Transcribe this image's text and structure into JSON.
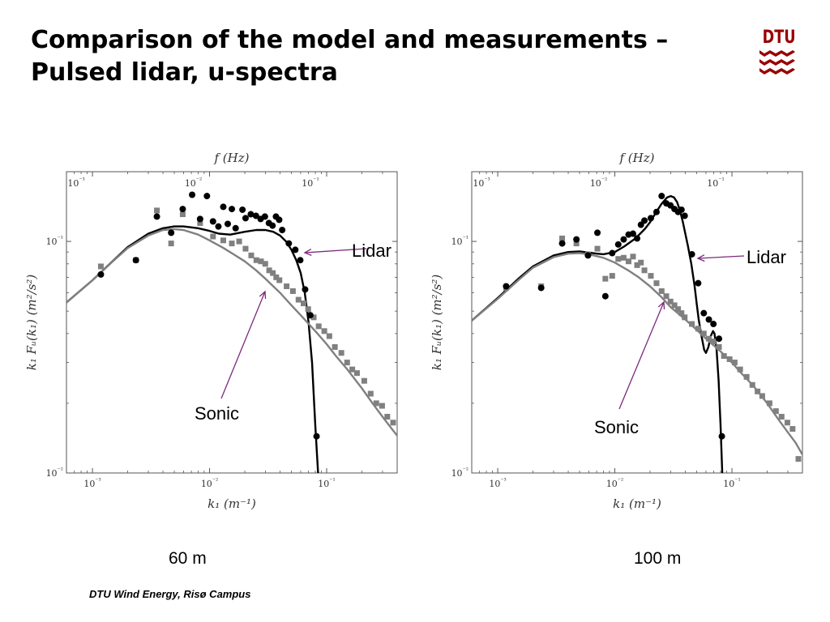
{
  "title": {
    "line1": "Comparison of the model and measurements –",
    "line2": "Pulsed lidar, u-spectra"
  },
  "logo": {
    "text": "DTU",
    "color": "#990000"
  },
  "colors": {
    "lidar": "#000000",
    "sonic": "#808080",
    "arrow": "#7b2a7b"
  },
  "footer": "DTU Wind Energy, Risø Campus",
  "chart_data": [
    {
      "type": "scatter",
      "caption": "60 m",
      "top_axis_label": "f (Hz)",
      "xlabel": "k₁ (m⁻¹)",
      "ylabel": "k₁ Fᵤ(k₁) (m²/s²)",
      "x_scale": "log",
      "y_scale": "log",
      "xlim": [
        0.0006,
        0.4
      ],
      "ylim": [
        0.01,
        0.2
      ],
      "x_ticks": [
        "10⁻³",
        "10⁻²",
        "10⁻¹"
      ],
      "y_ticks": [
        "10⁻²",
        "10⁻¹"
      ],
      "top_ticks": [
        "10⁻³",
        "10⁻²",
        "10⁻¹"
      ],
      "annotations": {
        "lidar": "Lidar",
        "sonic": "Sonic"
      },
      "series": [
        {
          "name": "Lidar",
          "kind": "points",
          "marker": "circle",
          "x": [
            0.00118,
            0.00235,
            0.00355,
            0.0047,
            0.0059,
            0.0071,
            0.0083,
            0.0095,
            0.0107,
            0.0119,
            0.0131,
            0.0143,
            0.0155,
            0.0167,
            0.0191,
            0.0203,
            0.0225,
            0.0249,
            0.0273,
            0.0297,
            0.0321,
            0.0345,
            0.0369,
            0.0393,
            0.0417,
            0.0475,
            0.054,
            0.0595,
            0.0655,
            0.0725,
            0.082
          ],
          "y": [
            0.072,
            0.083,
            0.128,
            0.109,
            0.138,
            0.159,
            0.125,
            0.157,
            0.122,
            0.116,
            0.141,
            0.119,
            0.138,
            0.114,
            0.137,
            0.126,
            0.131,
            0.129,
            0.125,
            0.128,
            0.12,
            0.117,
            0.128,
            0.124,
            0.112,
            0.098,
            0.092,
            0.083,
            0.062,
            0.048,
            0.0144
          ]
        },
        {
          "name": "Sonic",
          "kind": "points",
          "marker": "square",
          "x": [
            0.00118,
            0.00235,
            0.00355,
            0.0047,
            0.0059,
            0.0083,
            0.0107,
            0.0131,
            0.0155,
            0.0179,
            0.0203,
            0.0227,
            0.0251,
            0.0275,
            0.0299,
            0.0323,
            0.0347,
            0.0371,
            0.0395,
            0.0455,
            0.0515,
            0.0575,
            0.0635,
            0.0695,
            0.0775,
            0.0855,
            0.0955,
            0.1055,
            0.1175,
            0.1335,
            0.1495,
            0.1655,
            0.1815,
            0.2095,
            0.2375,
            0.2655,
            0.2975,
            0.3295,
            0.3695
          ],
          "y": [
            0.078,
            0.083,
            0.136,
            0.098,
            0.131,
            0.12,
            0.105,
            0.101,
            0.098,
            0.1,
            0.093,
            0.087,
            0.083,
            0.082,
            0.08,
            0.075,
            0.073,
            0.07,
            0.068,
            0.064,
            0.061,
            0.056,
            0.054,
            0.051,
            0.047,
            0.043,
            0.041,
            0.039,
            0.035,
            0.033,
            0.03,
            0.028,
            0.027,
            0.025,
            0.022,
            0.02,
            0.0195,
            0.0175,
            0.0165
          ]
        },
        {
          "name": "Lidar model",
          "kind": "line",
          "x": [
            0.0006,
            0.001,
            0.0015,
            0.002,
            0.003,
            0.004,
            0.005,
            0.006,
            0.008,
            0.01,
            0.012,
            0.015,
            0.02,
            0.025,
            0.03,
            0.035,
            0.04,
            0.045,
            0.05,
            0.055,
            0.06,
            0.065,
            0.07,
            0.075,
            0.08,
            0.085
          ],
          "y": [
            0.0545,
            0.068,
            0.0825,
            0.0945,
            0.108,
            0.114,
            0.116,
            0.116,
            0.114,
            0.111,
            0.108,
            0.107,
            0.11,
            0.112,
            0.112,
            0.11,
            0.106,
            0.1,
            0.092,
            0.083,
            0.073,
            0.06,
            0.045,
            0.03,
            0.016,
            0.0095
          ]
        },
        {
          "name": "Sonic model",
          "kind": "line",
          "x": [
            0.0006,
            0.001,
            0.0015,
            0.002,
            0.003,
            0.004,
            0.005,
            0.006,
            0.008,
            0.01,
            0.013,
            0.016,
            0.02,
            0.025,
            0.03,
            0.04,
            0.05,
            0.06,
            0.08,
            0.1,
            0.12,
            0.15,
            0.2,
            0.25,
            0.3,
            0.35,
            0.4
          ],
          "y": [
            0.0545,
            0.068,
            0.0822,
            0.0935,
            0.106,
            0.112,
            0.113,
            0.112,
            0.107,
            0.101,
            0.094,
            0.088,
            0.082,
            0.075,
            0.069,
            0.06,
            0.053,
            0.048,
            0.041,
            0.036,
            0.032,
            0.028,
            0.0232,
            0.0198,
            0.0175,
            0.0158,
            0.0145
          ]
        }
      ]
    },
    {
      "type": "scatter",
      "caption": "100 m",
      "top_axis_label": "f (Hz)",
      "xlabel": "k₁ (m⁻¹)",
      "ylabel": "k₁ Fᵤ(k₁) (m²/s²)",
      "x_scale": "log",
      "y_scale": "log",
      "xlim": [
        0.0006,
        0.4
      ],
      "ylim": [
        0.01,
        0.2
      ],
      "x_ticks": [
        "10⁻³",
        "10⁻²",
        "10⁻¹"
      ],
      "y_ticks": [
        "10⁻²",
        "10⁻¹"
      ],
      "top_ticks": [
        "10⁻³",
        "10⁻²",
        "10⁻¹"
      ],
      "annotations": {
        "lidar": "Lidar",
        "sonic": "Sonic"
      },
      "series": [
        {
          "name": "Lidar",
          "kind": "points",
          "marker": "circle",
          "x": [
            0.00118,
            0.00235,
            0.00355,
            0.0047,
            0.0059,
            0.0071,
            0.0083,
            0.0095,
            0.0107,
            0.0119,
            0.0131,
            0.0143,
            0.0155,
            0.0167,
            0.0179,
            0.0203,
            0.0227,
            0.0251,
            0.0275,
            0.0299,
            0.0323,
            0.0347,
            0.0371,
            0.0395,
            0.0455,
            0.0515,
            0.0575,
            0.0635,
            0.0695,
            0.0775,
            0.082
          ],
          "y": [
            0.064,
            0.063,
            0.098,
            0.102,
            0.087,
            0.109,
            0.058,
            0.089,
            0.097,
            0.102,
            0.107,
            0.108,
            0.103,
            0.118,
            0.123,
            0.126,
            0.134,
            0.157,
            0.146,
            0.143,
            0.138,
            0.134,
            0.137,
            0.129,
            0.088,
            0.066,
            0.049,
            0.046,
            0.044,
            0.038,
            0.0144
          ]
        },
        {
          "name": "Sonic",
          "kind": "points",
          "marker": "square",
          "x": [
            0.00118,
            0.00235,
            0.00355,
            0.0047,
            0.0059,
            0.0071,
            0.0083,
            0.0095,
            0.0107,
            0.0119,
            0.0131,
            0.0143,
            0.0155,
            0.0167,
            0.0179,
            0.0203,
            0.0227,
            0.0251,
            0.0275,
            0.0299,
            0.0323,
            0.0347,
            0.0371,
            0.0395,
            0.0455,
            0.0515,
            0.0575,
            0.0635,
            0.0695,
            0.0775,
            0.0855,
            0.0955,
            0.1055,
            0.1175,
            0.1335,
            0.1495,
            0.1655,
            0.1815,
            0.2095,
            0.2375,
            0.2655,
            0.2975,
            0.3295,
            0.3695
          ],
          "y": [
            0.063,
            0.064,
            0.103,
            0.098,
            0.088,
            0.093,
            0.069,
            0.071,
            0.084,
            0.085,
            0.082,
            0.086,
            0.079,
            0.081,
            0.075,
            0.071,
            0.066,
            0.061,
            0.058,
            0.055,
            0.053,
            0.051,
            0.049,
            0.047,
            0.044,
            0.042,
            0.04,
            0.038,
            0.037,
            0.035,
            0.032,
            0.031,
            0.03,
            0.028,
            0.026,
            0.024,
            0.0225,
            0.0215,
            0.02,
            0.0185,
            0.0175,
            0.0165,
            0.0155,
            0.0115
          ]
        },
        {
          "name": "Lidar model",
          "kind": "line",
          "x": [
            0.0006,
            0.001,
            0.0015,
            0.002,
            0.003,
            0.004,
            0.005,
            0.006,
            0.007,
            0.008,
            0.01,
            0.012,
            0.015,
            0.018,
            0.02,
            0.022,
            0.025,
            0.028,
            0.03,
            0.032,
            0.034,
            0.036,
            0.038,
            0.04,
            0.042,
            0.045,
            0.048,
            0.05,
            0.052,
            0.055,
            0.058,
            0.06,
            0.063,
            0.066,
            0.069,
            0.071,
            0.074,
            0.077,
            0.08,
            0.083
          ],
          "y": [
            0.0455,
            0.057,
            0.069,
            0.078,
            0.087,
            0.09,
            0.0905,
            0.0895,
            0.0885,
            0.088,
            0.09,
            0.095,
            0.103,
            0.113,
            0.121,
            0.131,
            0.145,
            0.155,
            0.157,
            0.155,
            0.148,
            0.136,
            0.122,
            0.108,
            0.096,
            0.08,
            0.064,
            0.054,
            0.046,
            0.039,
            0.034,
            0.033,
            0.035,
            0.039,
            0.041,
            0.04,
            0.034,
            0.025,
            0.016,
            0.0095
          ]
        },
        {
          "name": "Sonic model",
          "kind": "line",
          "x": [
            0.0006,
            0.001,
            0.0015,
            0.002,
            0.003,
            0.004,
            0.005,
            0.006,
            0.008,
            0.01,
            0.013,
            0.016,
            0.02,
            0.025,
            0.03,
            0.04,
            0.05,
            0.06,
            0.08,
            0.1,
            0.12,
            0.15,
            0.2,
            0.25,
            0.3,
            0.35,
            0.4
          ],
          "y": [
            0.0455,
            0.0565,
            0.068,
            0.077,
            0.0855,
            0.0885,
            0.089,
            0.088,
            0.085,
            0.081,
            0.075,
            0.07,
            0.064,
            0.0575,
            0.052,
            0.046,
            0.0415,
            0.038,
            0.0335,
            0.03,
            0.027,
            0.024,
            0.02,
            0.017,
            0.015,
            0.0135,
            0.012
          ]
        }
      ]
    }
  ]
}
